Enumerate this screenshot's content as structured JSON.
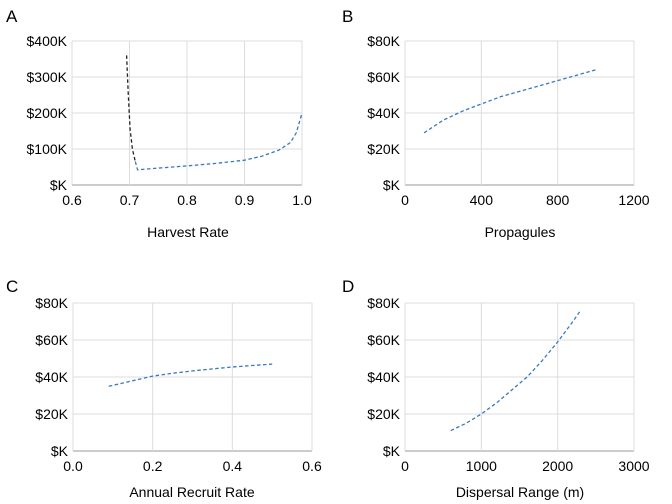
{
  "chart_data": [
    {
      "panel": "A",
      "type": "line",
      "xlabel": "Harvest Rate",
      "ylabel": "",
      "xlim": [
        0.6,
        1.0
      ],
      "ylim": [
        0,
        400
      ],
      "xticks": [
        0.6,
        0.7,
        0.8,
        0.9,
        1.0
      ],
      "xtick_labels": [
        "0.6",
        "0.7",
        "0.8",
        "0.9",
        "1.0"
      ],
      "yticks": [
        0,
        100,
        200,
        300,
        400
      ],
      "ytick_labels": [
        "$K",
        "$100K",
        "$200K",
        "$300K",
        "$400K"
      ],
      "grid": true,
      "series": [
        {
          "color": "#222222",
          "dash": "dashed",
          "x": [
            0.695,
            0.698,
            0.701,
            0.705,
            0.71
          ],
          "y": [
            360,
            250,
            155,
            100,
            65
          ]
        },
        {
          "color": "#3a78c0",
          "dash": "dashed",
          "x": [
            0.71,
            0.714,
            0.72,
            0.75,
            0.8,
            0.85,
            0.9,
            0.93,
            0.96,
            0.98,
            0.99,
            1.0
          ],
          "y": [
            65,
            42,
            43,
            47,
            53,
            60,
            69,
            80,
            97,
            118,
            145,
            200
          ]
        }
      ]
    },
    {
      "panel": "B",
      "type": "line",
      "xlabel": "Propagules",
      "ylabel": "",
      "xlim": [
        0,
        1200
      ],
      "ylim": [
        0,
        80
      ],
      "xticks": [
        0,
        400,
        800,
        1200
      ],
      "xtick_labels": [
        "0",
        "400",
        "800",
        "1200"
      ],
      "yticks": [
        0,
        20,
        40,
        60,
        80
      ],
      "ytick_labels": [
        "$K",
        "$20K",
        "$40K",
        "$60K",
        "$80K"
      ],
      "grid": true,
      "series": [
        {
          "color": "#3a78c0",
          "dash": "dashed",
          "x": [
            100,
            200,
            300,
            400,
            500,
            600,
            700,
            800,
            900,
            1000
          ],
          "y": [
            29,
            36,
            41,
            45,
            49,
            52,
            55,
            58,
            61,
            64
          ]
        }
      ]
    },
    {
      "panel": "C",
      "type": "line",
      "xlabel": "Annual Recruit Rate",
      "ylabel": "",
      "xlim": [
        0.0,
        0.6
      ],
      "ylim": [
        0,
        80
      ],
      "xticks": [
        0.0,
        0.2,
        0.4,
        0.6
      ],
      "xtick_labels": [
        "0.0",
        "0.2",
        "0.4",
        "0.6"
      ],
      "yticks": [
        0,
        20,
        40,
        60,
        80
      ],
      "ytick_labels": [
        "$K",
        "$20K",
        "$40K",
        "$60K",
        "$80K"
      ],
      "grid": true,
      "series": [
        {
          "color": "#3a78c0",
          "dash": "dashed",
          "x": [
            0.09,
            0.15,
            0.2,
            0.25,
            0.3,
            0.35,
            0.4,
            0.45,
            0.5
          ],
          "y": [
            35,
            38,
            40.5,
            42,
            43.3,
            44.4,
            45.4,
            46.2,
            47
          ]
        }
      ]
    },
    {
      "panel": "D",
      "type": "line",
      "xlabel": "Dispersal Range (m)",
      "ylabel": "",
      "xlim": [
        0,
        3000
      ],
      "ylim": [
        0,
        80
      ],
      "xticks": [
        0,
        1000,
        2000,
        3000
      ],
      "xtick_labels": [
        "0",
        "1000",
        "2000",
        "3000"
      ],
      "yticks": [
        0,
        20,
        40,
        60,
        80
      ],
      "ytick_labels": [
        "$K",
        "$20K",
        "$40K",
        "$60K",
        "$80K"
      ],
      "grid": true,
      "series": [
        {
          "color": "#3a78c0",
          "dash": "dashed",
          "x": [
            600,
            800,
            1000,
            1200,
            1400,
            1600,
            1800,
            2000,
            2200,
            2300
          ],
          "y": [
            11,
            15,
            20,
            26,
            33,
            40,
            49,
            59,
            70,
            76
          ]
        }
      ]
    }
  ]
}
